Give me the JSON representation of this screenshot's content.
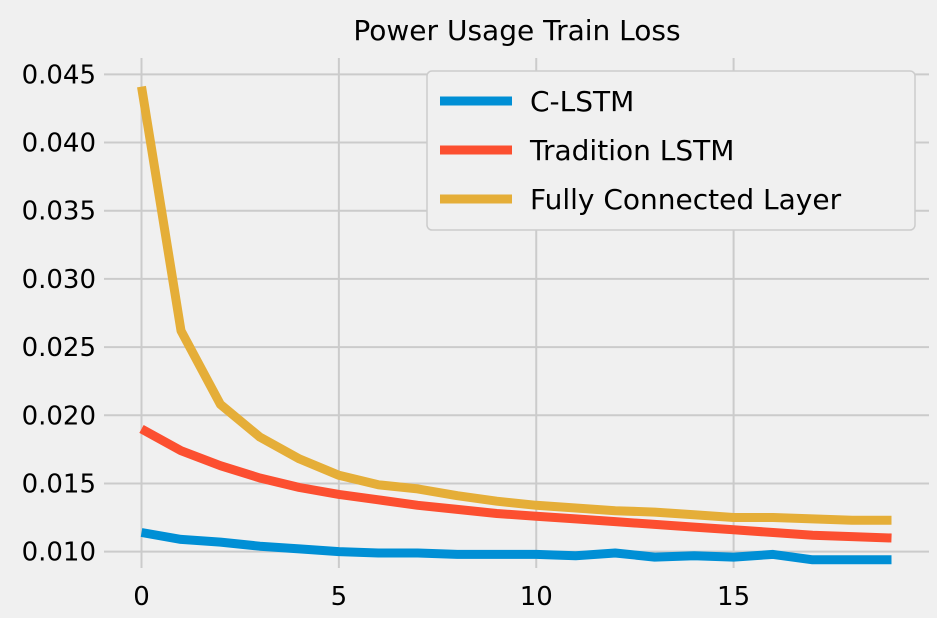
{
  "chart_data": {
    "type": "line",
    "title": "Power Usage Train Loss",
    "xlabel": "",
    "ylabel": "",
    "xlim": [
      -0.95,
      19.95
    ],
    "ylim": [
      0.0088,
      0.0462
    ],
    "xticks": [
      0,
      5,
      10,
      15
    ],
    "yticks": [
      0.01,
      0.015,
      0.02,
      0.025,
      0.03,
      0.035,
      0.04,
      0.045
    ],
    "xtick_labels": [
      "0",
      "5",
      "10",
      "15"
    ],
    "ytick_labels": [
      "0.010",
      "0.015",
      "0.020",
      "0.025",
      "0.030",
      "0.035",
      "0.040",
      "0.045"
    ],
    "grid": true,
    "legend_position": "top-right",
    "x": [
      0,
      1,
      2,
      3,
      4,
      5,
      6,
      7,
      8,
      9,
      10,
      11,
      12,
      13,
      14,
      15,
      16,
      17,
      18,
      19
    ],
    "series": [
      {
        "name": "C-LSTM",
        "color": "#008fd5",
        "values": [
          0.0114,
          0.0109,
          0.0107,
          0.0104,
          0.0102,
          0.01,
          0.0099,
          0.0099,
          0.0098,
          0.0098,
          0.0098,
          0.0097,
          0.0099,
          0.0096,
          0.0097,
          0.0096,
          0.0098,
          0.0094,
          0.0094,
          0.0094
        ]
      },
      {
        "name": "Tradition LSTM",
        "color": "#fc4f30",
        "values": [
          0.019,
          0.0174,
          0.0163,
          0.0154,
          0.0147,
          0.0142,
          0.0138,
          0.0134,
          0.0131,
          0.0128,
          0.0126,
          0.0124,
          0.0122,
          0.012,
          0.0118,
          0.0116,
          0.0114,
          0.0112,
          0.0111,
          0.011
        ]
      },
      {
        "name": "Fully Connected Layer",
        "color": "#e5ae38",
        "values": [
          0.0441,
          0.0262,
          0.0208,
          0.0184,
          0.0168,
          0.0156,
          0.0149,
          0.0146,
          0.0141,
          0.0137,
          0.0134,
          0.0132,
          0.013,
          0.0129,
          0.0127,
          0.0125,
          0.0125,
          0.0124,
          0.0123,
          0.0123
        ]
      }
    ]
  }
}
